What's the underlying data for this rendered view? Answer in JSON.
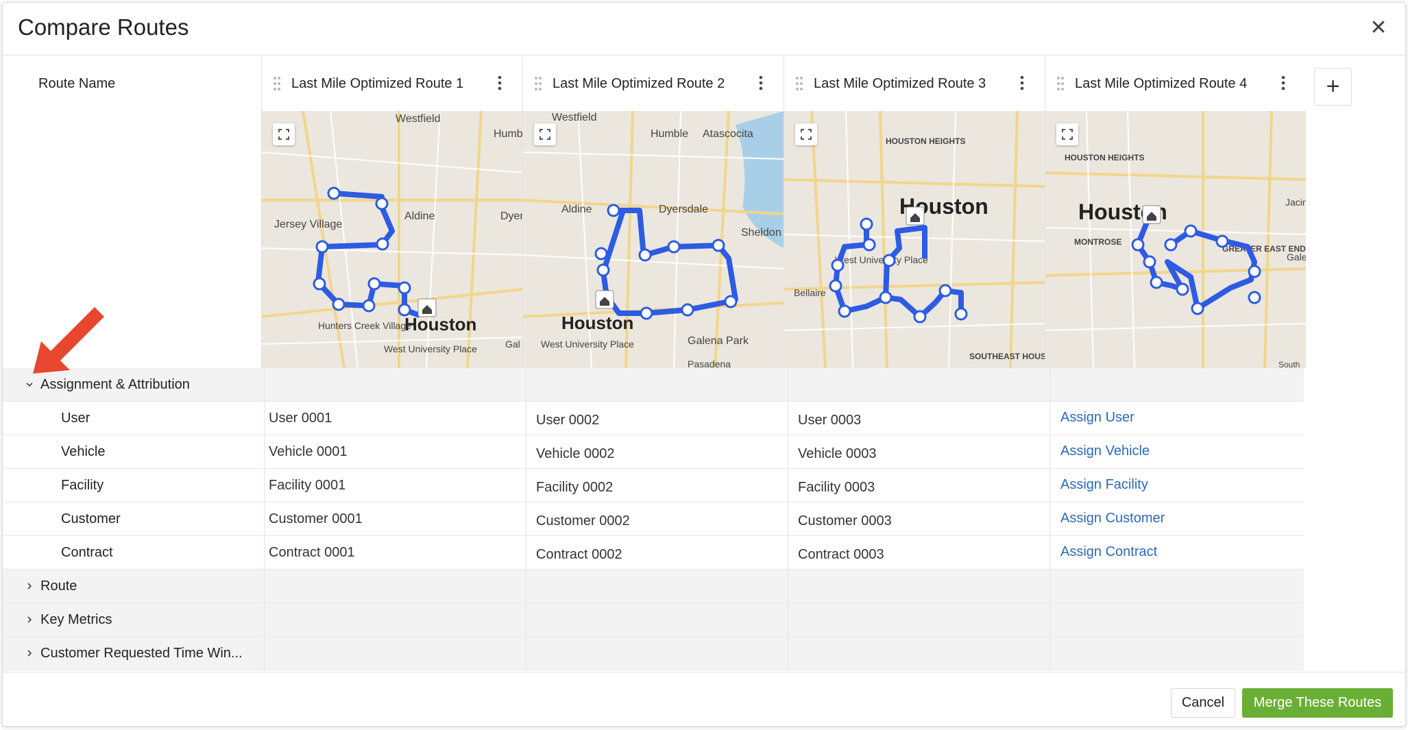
{
  "dialog": {
    "title": "Compare Routes",
    "close_icon": "close-icon"
  },
  "columns": {
    "label_header": "Route Name",
    "routes": [
      {
        "name": "Last Mile Optimized Route 1",
        "map_labels": [
          "Westfield",
          "Humb",
          "Aldine",
          "Dyer",
          "Jersey Village",
          "Hunters Creek Village",
          "Houston",
          "West University Place",
          "Gal"
        ]
      },
      {
        "name": "Last Mile Optimized Route 2",
        "map_labels": [
          "Westfield",
          "Humble",
          "Atascocita",
          "Aldine",
          "Dyersdale",
          "Sheldon",
          "Houston",
          "Galena Park",
          "West University Place",
          "Pasadena"
        ]
      },
      {
        "name": "Last Mile Optimized Route 3",
        "map_labels": [
          "HOUSTON HEIGHTS",
          "Houston",
          "West University Place",
          "Bellaire",
          "SOUTHEAST HOUSTON"
        ]
      },
      {
        "name": "Last Mile Optimized Route 4",
        "map_labels": [
          "HOUSTON HEIGHTS",
          "Houston",
          "MONTROSE",
          "GREATER EAST END",
          "Jacin",
          "Gale",
          "South"
        ]
      }
    ],
    "add_button_label": "+"
  },
  "sections": {
    "assignment": {
      "title": "Assignment & Attribution",
      "expanded": true,
      "rows": [
        {
          "label": "User",
          "values": [
            "User 0001",
            "User 0002",
            "User 0003",
            "Assign User"
          ]
        },
        {
          "label": "Vehicle",
          "values": [
            "Vehicle 0001",
            "Vehicle 0002",
            "Vehicle 0003",
            "Assign Vehicle"
          ]
        },
        {
          "label": "Facility",
          "values": [
            "Facility 0001",
            "Facility 0002",
            "Facility 0003",
            "Assign Facility"
          ]
        },
        {
          "label": "Customer",
          "values": [
            "Customer 0001",
            "Customer 0002",
            "Customer 0003",
            "Assign Customer"
          ]
        },
        {
          "label": "Contract",
          "values": [
            "Contract 0001",
            "Contract 0002",
            "Contract 0003",
            "Assign Contract"
          ]
        }
      ]
    },
    "route": {
      "title": "Route",
      "expanded": false
    },
    "key_metrics": {
      "title": "Key Metrics",
      "expanded": false
    },
    "time_windows": {
      "title": "Customer Requested Time Win...",
      "expanded": false
    }
  },
  "footer": {
    "cancel_label": "Cancel",
    "merge_label": "Merge These Routes"
  },
  "colors": {
    "route_line": "#2d5be3",
    "merge_button": "#6aaf35",
    "link": "#2a6ab8",
    "annotation_arrow": "#e8472f"
  }
}
